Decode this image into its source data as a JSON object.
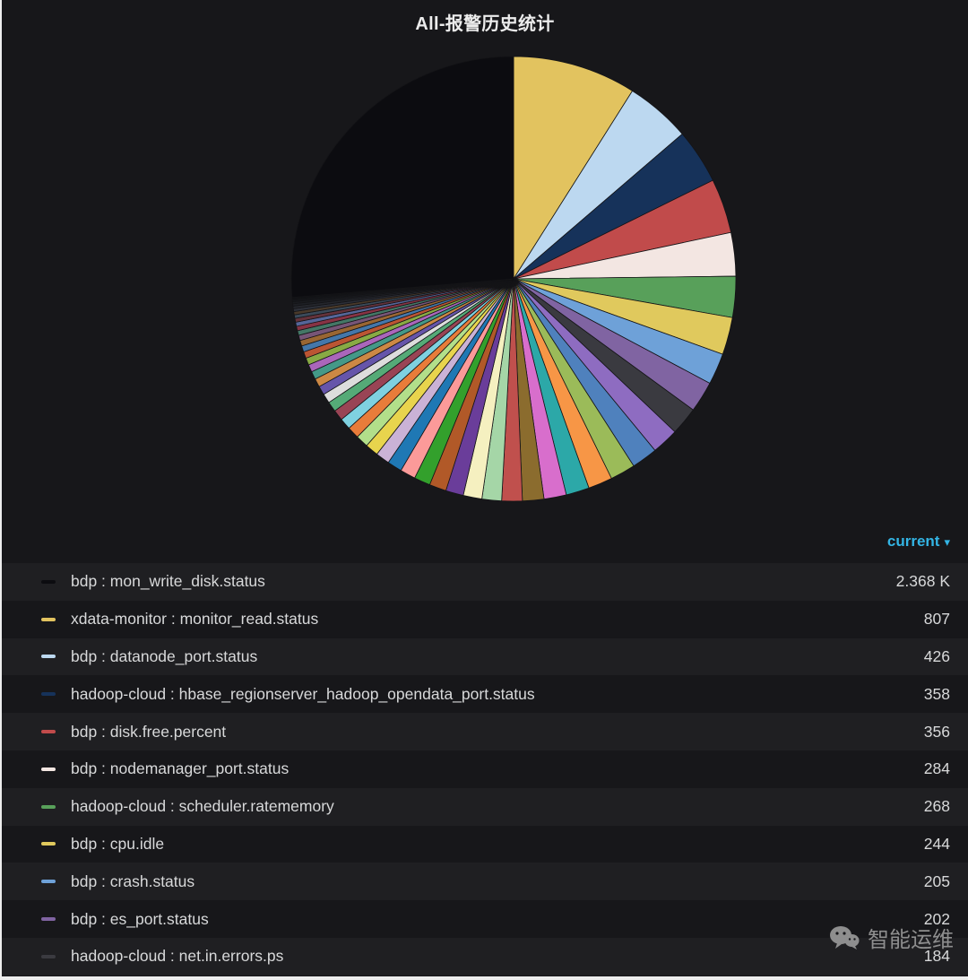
{
  "header": {
    "title": "All-报警历史统计"
  },
  "legend": {
    "header": "current",
    "caret": "▾"
  },
  "watermark": {
    "text": "智能运维",
    "icon": "wechat-icon"
  },
  "chart_data": {
    "type": "pie",
    "title": "All-报警历史统计",
    "legend_position": "bottom",
    "sort": "current desc",
    "background": "#17171a",
    "series": [
      {
        "name": "bdp : mon_write_disk.status",
        "value": 2368,
        "display": "2.368 K",
        "color": "#0c0c10"
      },
      {
        "name": "xdata-monitor : monitor_read.status",
        "value": 807,
        "display": "807",
        "color": "#e2c35f"
      },
      {
        "name": "bdp : datanode_port.status",
        "value": 426,
        "display": "426",
        "color": "#bcd8f0"
      },
      {
        "name": "hadoop-cloud : hbase_regionserver_hadoop_opendata_port.status",
        "value": 358,
        "display": "358",
        "color": "#16325a"
      },
      {
        "name": "bdp : disk.free.percent",
        "value": 356,
        "display": "356",
        "color": "#c14b4b"
      },
      {
        "name": "bdp : nodemanager_port.status",
        "value": 284,
        "display": "284",
        "color": "#f3e6e2"
      },
      {
        "name": "hadoop-cloud : scheduler.ratememory",
        "value": 268,
        "display": "268",
        "color": "#58a05a"
      },
      {
        "name": "bdp : cpu.idle",
        "value": 244,
        "display": "244",
        "color": "#e0c95d"
      },
      {
        "name": "bdp : crash.status",
        "value": 205,
        "display": "205",
        "color": "#6ea1d8"
      },
      {
        "name": "bdp : es_port.status",
        "value": 202,
        "display": "202",
        "color": "#8064a2"
      },
      {
        "name": "hadoop-cloud : net.in.errors.ps",
        "value": 184,
        "display": "184",
        "color": "#3a3a40"
      }
    ],
    "others": {
      "note": "unlabeled small slices estimated from pie",
      "values": [
        175,
        170,
        164,
        158,
        152,
        146,
        140,
        134,
        128,
        122,
        116,
        111,
        106,
        101,
        96,
        91,
        86,
        82,
        78,
        74,
        70,
        66,
        62,
        58,
        55,
        52,
        49,
        46,
        43,
        40,
        37,
        34,
        31,
        29,
        27,
        25,
        23,
        21,
        19,
        17,
        15,
        13,
        11,
        9,
        8
      ],
      "colors": [
        "#8e6cc1",
        "#4f81bd",
        "#9bbb59",
        "#f79646",
        "#2ca8a8",
        "#d86ecc",
        "#8b6c2e",
        "#c0504d",
        "#a5d6a7",
        "#f5f0c0",
        "#6a3d9a",
        "#b15928",
        "#33a02c",
        "#fb9a99",
        "#1f78b4",
        "#cab2d6",
        "#e8d44d",
        "#b2df8a",
        "#e87c3a",
        "#7fd1e0",
        "#994455",
        "#55aa77",
        "#dddddd",
        "#6655aa",
        "#cc8844",
        "#449988",
        "#aa66bb",
        "#88aa44",
        "#bb5533",
        "#4477aa",
        "#996633",
        "#775577",
        "#447766",
        "#883344",
        "#556699",
        "#64323a",
        "#3a4a5a",
        "#4a3a2a",
        "#2c2f38",
        "#24262c",
        "#1d1f24",
        "#191b1f",
        "#15171b",
        "#121418",
        "#0f1114"
      ]
    }
  }
}
